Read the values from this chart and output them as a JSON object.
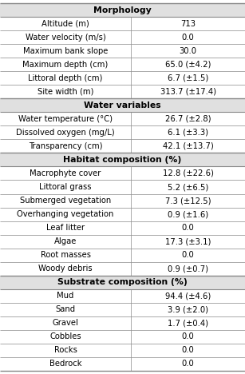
{
  "sections": [
    {
      "header": "Morphology",
      "rows": [
        [
          "Altitude (m)",
          "713"
        ],
        [
          "Water velocity (m/s)",
          "0.0"
        ],
        [
          "Maximum bank slope",
          "30.0"
        ],
        [
          "Maximum depth (cm)",
          "65.0 (±4.2)"
        ],
        [
          "Littoral depth (cm)",
          "6.7 (±1.5)"
        ],
        [
          "Site width (m)",
          "313.7 (±17.4)"
        ]
      ]
    },
    {
      "header": "Water variables",
      "rows": [
        [
          "Water temperature (°C)",
          "26.7 (±2.8)"
        ],
        [
          "Dissolved oxygen (mg/L)",
          "6.1 (±3.3)"
        ],
        [
          "Transparency (cm)",
          "42.1 (±13.7)"
        ]
      ]
    },
    {
      "header": "Habitat composition (%)",
      "rows": [
        [
          "Macrophyte cover",
          "12.8 (±22.6)"
        ],
        [
          "Littoral grass",
          "5.2 (±6.5)"
        ],
        [
          "Submerged vegetation",
          "7.3 (±12.5)"
        ],
        [
          "Overhanging vegetation",
          "0.9 (±1.6)"
        ],
        [
          "Leaf litter",
          "0.0"
        ],
        [
          "Algae",
          "17.3 (±3.1)"
        ],
        [
          "Root masses",
          "0.0"
        ],
        [
          "Woody debris",
          "0.9 (±0.7)"
        ]
      ]
    },
    {
      "header": "Substrate composition (%)",
      "rows": [
        [
          "Mud",
          "94.4 (±4.6)"
        ],
        [
          "Sand",
          "3.9 (±2.0)"
        ],
        [
          "Gravel",
          "1.7 (±0.4)"
        ],
        [
          "Cobbles",
          "0.0"
        ],
        [
          "Rocks",
          "0.0"
        ],
        [
          "Bedrock",
          "0.0"
        ]
      ]
    }
  ],
  "bg_color": "#ffffff",
  "header_bg": "#e0e0e0",
  "border_color": "#888888",
  "text_color": "#000000",
  "font_size": 7.2,
  "header_font_size": 7.8,
  "col_split": 0.535,
  "fig_width": 3.07,
  "fig_height": 4.68,
  "dpi": 100
}
